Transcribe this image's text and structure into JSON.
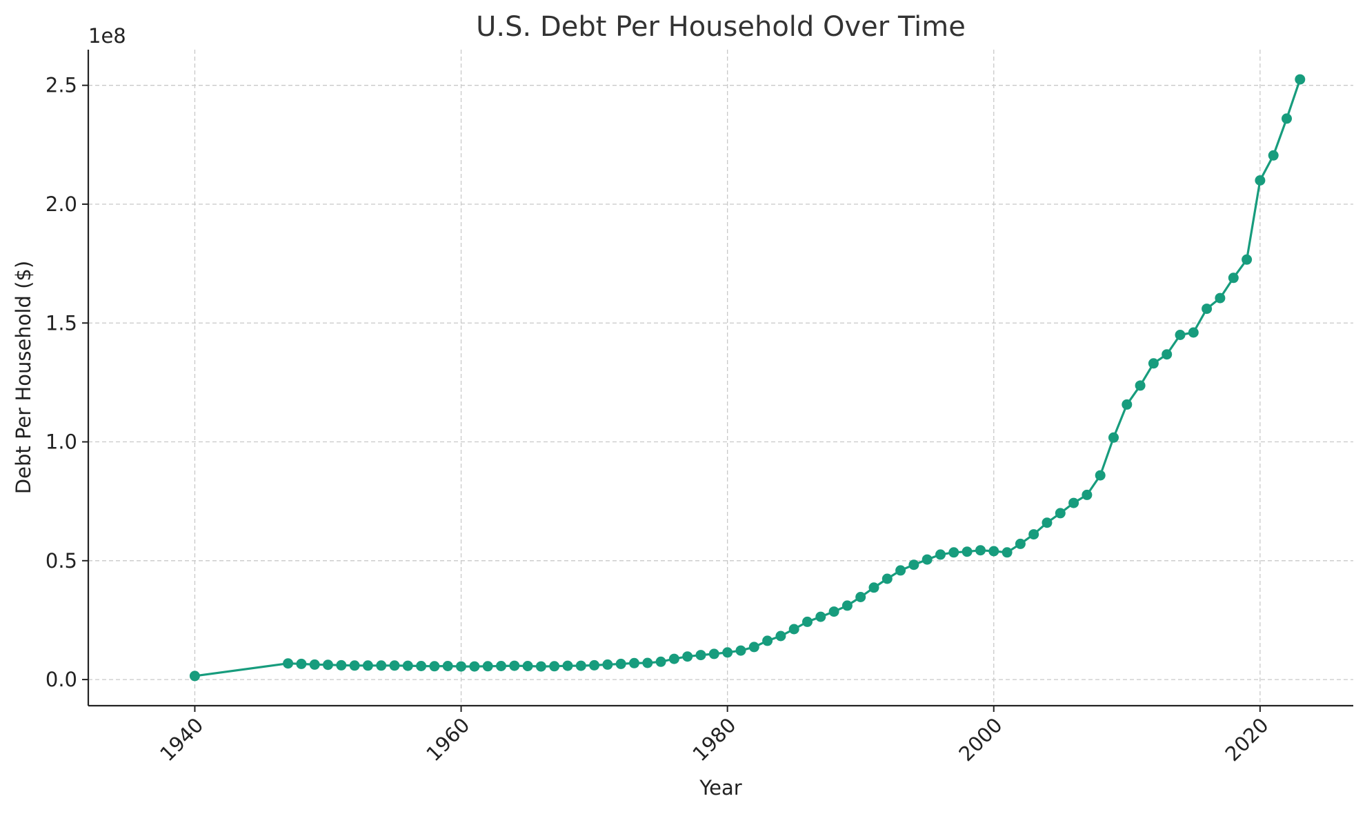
{
  "chart_data": {
    "type": "line",
    "title": "U.S. Debt Per Household Over Time",
    "xlabel": "Year",
    "ylabel": "Debt Per Household ($)",
    "y_offset_label": "1e8",
    "xlim": [
      1932,
      2027
    ],
    "ylim": [
      -0.11,
      2.65
    ],
    "y_scale_note": "values in units of 1e8 dollars",
    "x_ticks": [
      1940,
      1960,
      1980,
      2000,
      2020
    ],
    "x_tick_labels": [
      "1940",
      "1960",
      "1980",
      "2000",
      "2020"
    ],
    "y_ticks": [
      0.0,
      0.5,
      1.0,
      1.5,
      2.0,
      2.5
    ],
    "y_tick_labels": [
      "0.0",
      "0.5",
      "1.0",
      "1.5",
      "2.0",
      "2.5"
    ],
    "grid": true,
    "color": "#179c7d",
    "series": [
      {
        "x": [
          1940,
          1947,
          1948,
          1949,
          1950,
          1951,
          1952,
          1953,
          1954,
          1955,
          1956,
          1957,
          1958,
          1959,
          1960,
          1961,
          1962,
          1963,
          1964,
          1965,
          1966,
          1967,
          1968,
          1969,
          1970,
          1971,
          1972,
          1973,
          1974,
          1975,
          1976,
          1977,
          1978,
          1979,
          1980,
          1981,
          1982,
          1983,
          1984,
          1985,
          1986,
          1987,
          1988,
          1989,
          1990,
          1991,
          1992,
          1993,
          1994,
          1995,
          1996,
          1997,
          1998,
          1999,
          2000,
          2001,
          2002,
          2003,
          2004,
          2005,
          2006,
          2007,
          2008,
          2009,
          2010,
          2011,
          2012,
          2013,
          2014,
          2015,
          2016,
          2017,
          2018,
          2019,
          2020,
          2021,
          2022,
          2023
        ],
        "values": [
          0.015,
          0.068,
          0.066,
          0.063,
          0.062,
          0.06,
          0.059,
          0.059,
          0.059,
          0.059,
          0.058,
          0.057,
          0.056,
          0.057,
          0.055,
          0.055,
          0.056,
          0.057,
          0.058,
          0.057,
          0.055,
          0.056,
          0.058,
          0.058,
          0.06,
          0.063,
          0.066,
          0.069,
          0.07,
          0.075,
          0.087,
          0.097,
          0.103,
          0.108,
          0.114,
          0.122,
          0.137,
          0.163,
          0.183,
          0.212,
          0.243,
          0.264,
          0.286,
          0.311,
          0.347,
          0.387,
          0.424,
          0.459,
          0.483,
          0.505,
          0.526,
          0.535,
          0.538,
          0.544,
          0.54,
          0.535,
          0.571,
          0.611,
          0.66,
          0.7,
          0.743,
          0.777,
          0.859,
          1.018,
          1.157,
          1.237,
          1.33,
          1.368,
          1.45,
          1.46,
          1.56,
          1.605,
          1.69,
          1.767,
          2.1,
          2.205,
          2.36,
          2.525
        ]
      }
    ]
  }
}
